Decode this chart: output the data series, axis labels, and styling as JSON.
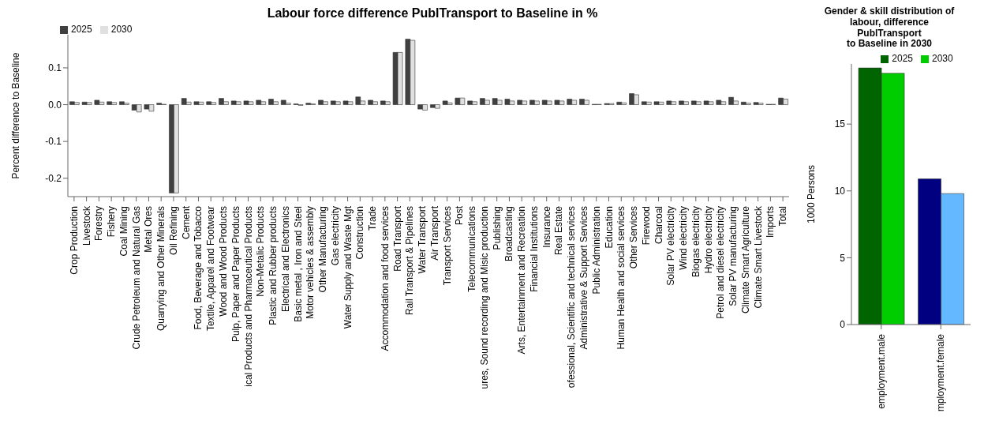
{
  "chart_data": [
    {
      "type": "bar",
      "title": "Labour force difference PublTransport to Baseline in %",
      "ylabel": "Percent difference to Baseline",
      "categories": [
        "Crop Production",
        "Livestock",
        "Forestry",
        "Fishery",
        "Coal Mining",
        "Crude Petroleum and Natural Gas",
        "Metal Ores",
        "Quarrying and Other Minerals",
        "Oil Refining",
        "Cement",
        "Food, Beverage and Tobacco",
        "Textile, Apparel and Footwear",
        "Wood and Wood Products",
        "Pulp, Paper and Paper  Products",
        "ical Products and Pharmaceutical Products",
        "Non-Metalic Products",
        "Plastic and Rubber products",
        "Electrical and Electronics",
        "Basic metal , Iron and Steel",
        "Motor vehicles &  assembly",
        "Other Manufacturing",
        "Gas electricity",
        "Water Supply and Waste Mgt",
        "Construction",
        "Trade",
        "Accommodation and food services",
        "Road Transport",
        "Rail Transport & Pipelines",
        "Water Transport",
        "Air Transport",
        "Transport Services",
        "Post",
        "Telecommunications",
        "ures, Sound recording and Misic production",
        "Publishing",
        "Broadcasting",
        "Arts, Entertainment and Recreation",
        "Financial Institutions",
        "Insurance",
        "Real Estate",
        "ofessional, Scientific and technical services",
        "Administrative & Support Services",
        "Public Administration",
        "Education",
        "Human Health and social services",
        "Other Services",
        "Firewood",
        "Charcoal",
        "Solar PV electricity",
        "Wind electricity",
        "Biogas electricity",
        "Hydro electricity",
        "Petrol and diesel electricity",
        "Solar PV manufacturing",
        "Climate Smart Agriculture",
        "Climate Smart Livestock",
        "Imports",
        "Total"
      ],
      "series": [
        {
          "name": "2025",
          "color": "#404040",
          "values": [
            0.008,
            0.007,
            0.012,
            0.008,
            0.008,
            -0.015,
            -0.012,
            0.004,
            -0.24,
            0.017,
            0.008,
            0.008,
            0.017,
            0.01,
            0.01,
            0.012,
            0.015,
            0.012,
            0.002,
            0.004,
            0.012,
            0.01,
            0.01,
            0.021,
            0.012,
            0.01,
            0.142,
            0.178,
            -0.012,
            -0.008,
            0.01,
            0.018,
            0.01,
            0.017,
            0.017,
            0.015,
            0.012,
            0.012,
            0.012,
            0.012,
            0.015,
            0.015,
            0.001,
            0.003,
            0.007,
            0.03,
            0.008,
            0.008,
            0.01,
            0.01,
            0.01,
            0.01,
            0.012,
            0.02,
            0.007,
            0.006,
            0.001,
            0.018
          ]
        },
        {
          "name": "2030",
          "color": "#e0e0e0",
          "values": [
            0.006,
            0.006,
            0.007,
            0.006,
            0.004,
            -0.02,
            -0.018,
            0.001,
            -0.24,
            0.007,
            0.007,
            0.006,
            0.008,
            0.008,
            0.008,
            0.008,
            0.008,
            0.004,
            -0.002,
            0.002,
            0.008,
            0.008,
            0.008,
            0.01,
            0.008,
            0.008,
            0.142,
            0.175,
            -0.015,
            -0.01,
            0.005,
            0.018,
            0.008,
            0.012,
            0.012,
            0.01,
            0.01,
            0.01,
            0.01,
            0.01,
            0.012,
            0.012,
            0.001,
            0.003,
            0.005,
            0.027,
            0.007,
            0.007,
            0.008,
            0.008,
            0.008,
            0.008,
            0.008,
            0.01,
            0.004,
            0.004,
            0.001,
            0.015
          ]
        }
      ],
      "ylim": [
        -0.25,
        0.19
      ],
      "yticks": [
        {
          "value": -0.2,
          "label": "-0.2"
        },
        {
          "value": -0.1,
          "label": "-0.1"
        },
        {
          "value": 0,
          "label": "0.0"
        },
        {
          "value": 0.1,
          "label": "0.1"
        }
      ],
      "legend": "top left"
    },
    {
      "type": "bar",
      "title": "Gender & skill distribution of\nlabour, difference\nPublTransport\nto Baseline in 2030",
      "ylabel": "1000 Persons",
      "categories": [
        "employment.male",
        "mployment.female"
      ],
      "series": [
        {
          "name": "2025",
          "colors": [
            "#006400",
            "#000080"
          ],
          "values": [
            19.2,
            10.9
          ]
        },
        {
          "name": "2030",
          "colors": [
            "#00cd00",
            "#63b8ff"
          ],
          "values": [
            18.8,
            9.8
          ]
        }
      ],
      "ylim": [
        0,
        19.5
      ],
      "yticks": [
        0,
        5,
        10,
        15
      ],
      "legend": "top"
    }
  ]
}
